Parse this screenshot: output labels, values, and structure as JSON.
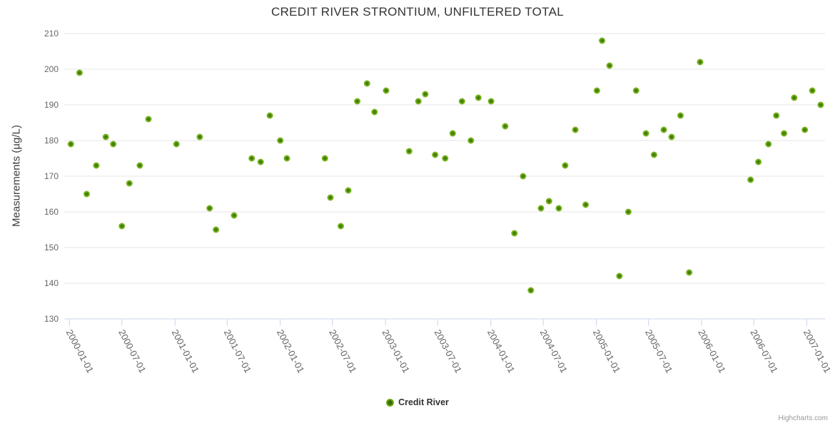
{
  "chart": {
    "title": "CREDIT RIVER STRONTIUM, UNFILTERED TOTAL",
    "credit": "Highcharts.com"
  },
  "legend": {
    "items": [
      {
        "label": "Credit River"
      }
    ]
  },
  "colors": {
    "background": "#ffffff",
    "title": "#333333",
    "axis_title": "#3c3c3c",
    "axis_label": "#666666",
    "gridline": "#e6e6e6",
    "axis_line": "#ccd6eb",
    "tick": "#ccd6eb",
    "legend_text": "#333333",
    "credit_text": "#999999",
    "marker_outer": "#7fb821",
    "marker_inner": "#356d06"
  },
  "chart_data": {
    "type": "scatter",
    "title": "CREDIT RIVER STRONTIUM, UNFILTERED TOTAL",
    "xlabel": "",
    "ylabel": "Measurements (µg/L)",
    "ylim": [
      130,
      210
    ],
    "yticks": [
      130,
      140,
      150,
      160,
      170,
      180,
      190,
      200,
      210
    ],
    "xticks": [
      "2000-01-01",
      "2000-07-01",
      "2001-01-01",
      "2001-07-01",
      "2002-01-01",
      "2002-07-01",
      "2003-01-01",
      "2003-07-01",
      "2004-01-01",
      "2004-07-01",
      "2005-01-01",
      "2005-07-01",
      "2006-01-01",
      "2006-07-01",
      "2007-01-01"
    ],
    "grid": "horizontal",
    "legend_position": "bottom-center",
    "series": [
      {
        "name": "Credit River",
        "points": [
          [
            "2000-01-06",
            179
          ],
          [
            "2000-02-05",
            199
          ],
          [
            "2000-03-01",
            165
          ],
          [
            "2000-04-03",
            173
          ],
          [
            "2000-05-06",
            181
          ],
          [
            "2000-06-01",
            179
          ],
          [
            "2000-07-01",
            156
          ],
          [
            "2000-07-27",
            168
          ],
          [
            "2000-09-01",
            173
          ],
          [
            "2000-10-01",
            186
          ],
          [
            "2001-01-06",
            179
          ],
          [
            "2001-03-28",
            181
          ],
          [
            "2001-05-01",
            161
          ],
          [
            "2001-05-23",
            155
          ],
          [
            "2001-07-25",
            159
          ],
          [
            "2001-09-24",
            175
          ],
          [
            "2001-10-25",
            174
          ],
          [
            "2001-11-26",
            187
          ],
          [
            "2002-01-01",
            180
          ],
          [
            "2002-01-24",
            175
          ],
          [
            "2002-06-05",
            175
          ],
          [
            "2002-06-24",
            164
          ],
          [
            "2002-07-30",
            156
          ],
          [
            "2002-08-25",
            166
          ],
          [
            "2002-09-25",
            191
          ],
          [
            "2002-10-29",
            196
          ],
          [
            "2002-11-24",
            188
          ],
          [
            "2003-01-03",
            194
          ],
          [
            "2003-03-24",
            177
          ],
          [
            "2003-04-25",
            191
          ],
          [
            "2003-05-19",
            193
          ],
          [
            "2003-06-22",
            176
          ],
          [
            "2003-07-27",
            175
          ],
          [
            "2003-08-22",
            182
          ],
          [
            "2003-09-23",
            191
          ],
          [
            "2003-10-24",
            180
          ],
          [
            "2003-11-19",
            192
          ],
          [
            "2004-01-02",
            191
          ],
          [
            "2004-02-20",
            184
          ],
          [
            "2004-03-23",
            154
          ],
          [
            "2004-04-22",
            170
          ],
          [
            "2004-05-19",
            138
          ],
          [
            "2004-06-23",
            161
          ],
          [
            "2004-07-21",
            163
          ],
          [
            "2004-08-24",
            161
          ],
          [
            "2004-09-15",
            173
          ],
          [
            "2004-10-20",
            183
          ],
          [
            "2004-11-25",
            162
          ],
          [
            "2005-01-03",
            194
          ],
          [
            "2005-01-21",
            208
          ],
          [
            "2005-02-16",
            201
          ],
          [
            "2005-03-22",
            142
          ],
          [
            "2005-04-22",
            160
          ],
          [
            "2005-05-19",
            194
          ],
          [
            "2005-06-22",
            182
          ],
          [
            "2005-07-20",
            176
          ],
          [
            "2005-08-23",
            183
          ],
          [
            "2005-09-19",
            181
          ],
          [
            "2005-10-20",
            187
          ],
          [
            "2005-11-19",
            143
          ],
          [
            "2005-12-27",
            202
          ],
          [
            "2006-06-20",
            169
          ],
          [
            "2006-07-17",
            174
          ],
          [
            "2006-08-21",
            179
          ],
          [
            "2006-09-17",
            187
          ],
          [
            "2006-10-14",
            182
          ],
          [
            "2006-11-18",
            192
          ],
          [
            "2006-12-25",
            183
          ],
          [
            "2007-01-20",
            194
          ],
          [
            "2007-02-18",
            190
          ]
        ]
      }
    ]
  }
}
